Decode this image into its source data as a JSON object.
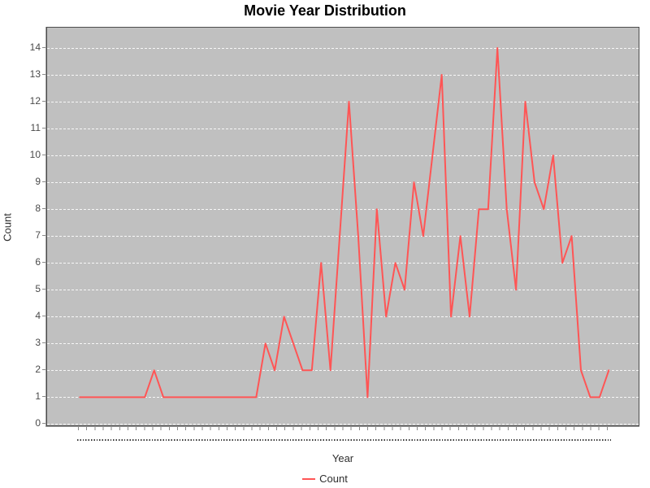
{
  "title": "Movie Year Distribution",
  "y_axis": {
    "label": "Count",
    "ticks": [
      0,
      1,
      2,
      3,
      4,
      5,
      6,
      7,
      8,
      9,
      10,
      11,
      12,
      13,
      14
    ]
  },
  "x_axis": {
    "label": "Year",
    "tick_labels_note": "tick labels present but rendered as illegible dots"
  },
  "legend": {
    "items": [
      {
        "label": "Count",
        "color": "#ff5555"
      }
    ]
  },
  "colors": {
    "series_line": "#ff5555",
    "plot_background": "#c0c0c0",
    "gridline": "#f7f7f7",
    "plot_border": "#4d4d4d",
    "tick_text": "#4a4a4a"
  },
  "chart_data": {
    "type": "line",
    "title": "Movie Year Distribution",
    "xlabel": "Year",
    "ylabel": "Count",
    "ylim": [
      0,
      14
    ],
    "grid": "horizontal-dashed",
    "legend_position": "bottom",
    "x_note": "58 consecutive year categories; labels too small to read (drawn as dots)",
    "series": [
      {
        "name": "Count",
        "values": [
          1,
          1,
          1,
          1,
          1,
          1,
          1,
          1,
          2,
          1,
          1,
          1,
          1,
          1,
          1,
          1,
          1,
          1,
          1,
          1,
          3,
          2,
          4,
          3,
          2,
          2,
          6,
          2,
          7,
          12,
          7,
          1,
          8,
          4,
          6,
          5,
          9,
          7,
          10,
          13,
          4,
          7,
          4,
          8,
          8,
          14,
          8,
          5,
          12,
          9,
          8,
          10,
          6,
          7,
          2,
          1,
          1,
          2
        ]
      }
    ]
  }
}
